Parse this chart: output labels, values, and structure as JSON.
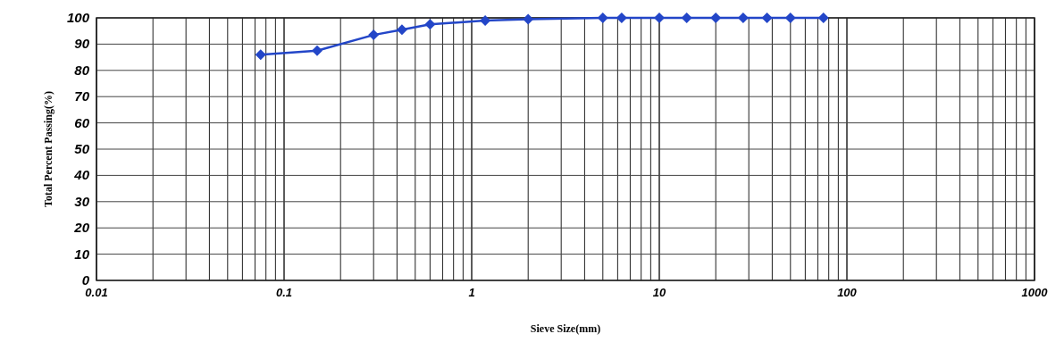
{
  "chart_data": {
    "type": "line",
    "xlabel": "Sieve Size(mm)",
    "ylabel": "Total Percent Passing(%)",
    "log": "x",
    "xlim": [
      0.01,
      1000
    ],
    "ylim": [
      0,
      100
    ],
    "xticks": [
      0.01,
      {
        "value": 0.02,
        "label": null
      },
      {
        "value": 0.03,
        "label": null
      },
      {
        "value": 0.04,
        "label": null
      },
      {
        "value": 0.05,
        "label": null
      },
      {
        "value": 0.06,
        "label": null
      },
      {
        "value": 0.07,
        "label": null
      },
      {
        "value": 0.08,
        "label": null
      },
      {
        "value": 0.09,
        "label": null
      },
      0.1,
      {
        "value": 0.2,
        "label": null
      },
      {
        "value": 0.3,
        "label": null
      },
      {
        "value": 0.4,
        "label": null
      },
      {
        "value": 0.5,
        "label": null
      },
      {
        "value": 0.6,
        "label": null
      },
      {
        "value": 0.7,
        "label": null
      },
      {
        "value": 0.8,
        "label": null
      },
      {
        "value": 0.9,
        "label": null
      },
      1,
      {
        "value": 2,
        "label": null
      },
      {
        "value": 3,
        "label": null
      },
      {
        "value": 4,
        "label": null
      },
      {
        "value": 5,
        "label": null
      },
      {
        "value": 6,
        "label": null
      },
      {
        "value": 7,
        "label": null
      },
      {
        "value": 8,
        "label": null
      },
      {
        "value": 9,
        "label": null
      },
      10,
      {
        "value": 20,
        "label": null
      },
      {
        "value": 30,
        "label": null
      },
      {
        "value": 40,
        "label": null
      },
      {
        "value": 50,
        "label": null
      },
      {
        "value": 60,
        "label": null
      },
      {
        "value": 70,
        "label": null
      },
      {
        "value": 80,
        "label": null
      },
      {
        "value": 90,
        "label": null
      },
      100,
      {
        "value": 200,
        "label": null
      },
      {
        "value": 300,
        "label": null
      },
      {
        "value": 400,
        "label": null
      },
      {
        "value": 500,
        "label": null
      },
      {
        "value": 600,
        "label": null
      },
      {
        "value": 700,
        "label": null
      },
      {
        "value": 800,
        "label": null
      },
      {
        "value": 900,
        "label": null
      },
      1000
    ],
    "yticks": [
      0,
      10,
      20,
      30,
      40,
      50,
      60,
      70,
      80,
      90,
      100
    ],
    "grid": true,
    "marker": "diamond",
    "line_style": "solid",
    "x": [
      0.075,
      0.15,
      0.3,
      0.425,
      0.6,
      1.18,
      2,
      5,
      6.3,
      10,
      14,
      20,
      28,
      37.5,
      50,
      75
    ],
    "series": [
      {
        "color": "#2346c8",
        "values": [
          86,
          87.5,
          93.5,
          95.5,
          97.5,
          99,
          99.5,
          100,
          100,
          100,
          100,
          100,
          100,
          100,
          100,
          100
        ]
      }
    ]
  }
}
